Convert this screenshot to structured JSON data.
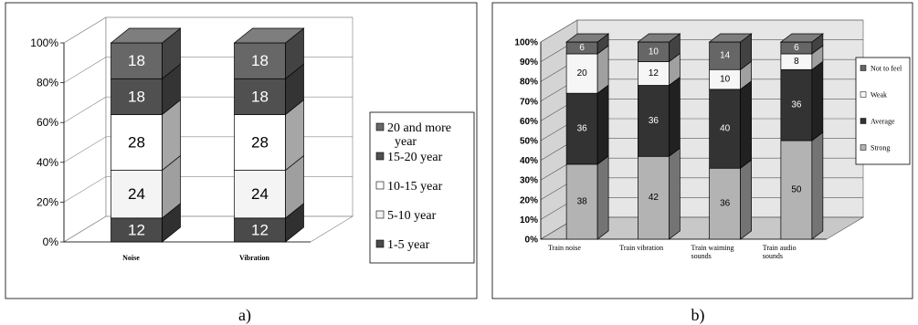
{
  "chart_data": [
    {
      "type": "bar",
      "stacked": true,
      "three_d": true,
      "caption": "a)",
      "categories": [
        "Noise",
        "Vibration"
      ],
      "y_ticks": [
        "0%",
        "20%",
        "40%",
        "60%",
        "80%",
        "100%"
      ],
      "ylim": [
        0,
        100
      ],
      "legend_position": "right",
      "series": [
        {
          "name": "1-5   year",
          "values": [
            12,
            12
          ],
          "color": "#4a4a4a"
        },
        {
          "name": "5-10  year",
          "values": [
            24,
            24
          ],
          "color": "#f4f4f4"
        },
        {
          "name": "10-15  year",
          "values": [
            28,
            28
          ],
          "color": "#ffffff"
        },
        {
          "name": "15-20  year",
          "values": [
            18,
            18
          ],
          "color": "#505050"
        },
        {
          "name": "20 and more year",
          "values": [
            18,
            18
          ],
          "color": "#676767"
        }
      ]
    },
    {
      "type": "bar",
      "stacked": true,
      "three_d": true,
      "caption": "b)",
      "categories": [
        "Train noise",
        "Train vibration",
        "Train waiming sounds",
        "Train audio sounds"
      ],
      "y_ticks": [
        "0%",
        "10%",
        "20%",
        "30%",
        "40%",
        "50%",
        "60%",
        "70%",
        "80%",
        "90%",
        "100%"
      ],
      "ylim": [
        0,
        100
      ],
      "legend_position": "right",
      "series": [
        {
          "name": "Strong",
          "values": [
            38,
            42,
            36,
            50
          ],
          "color": "#b3b3b3"
        },
        {
          "name": "Average",
          "values": [
            36,
            36,
            40,
            36
          ],
          "color": "#333333"
        },
        {
          "name": "Weak",
          "values": [
            20,
            12,
            10,
            8
          ],
          "color": "#f6f6f6"
        },
        {
          "name": "Not to feel",
          "values": [
            6,
            10,
            14,
            6
          ],
          "color": "#666666"
        }
      ]
    }
  ]
}
